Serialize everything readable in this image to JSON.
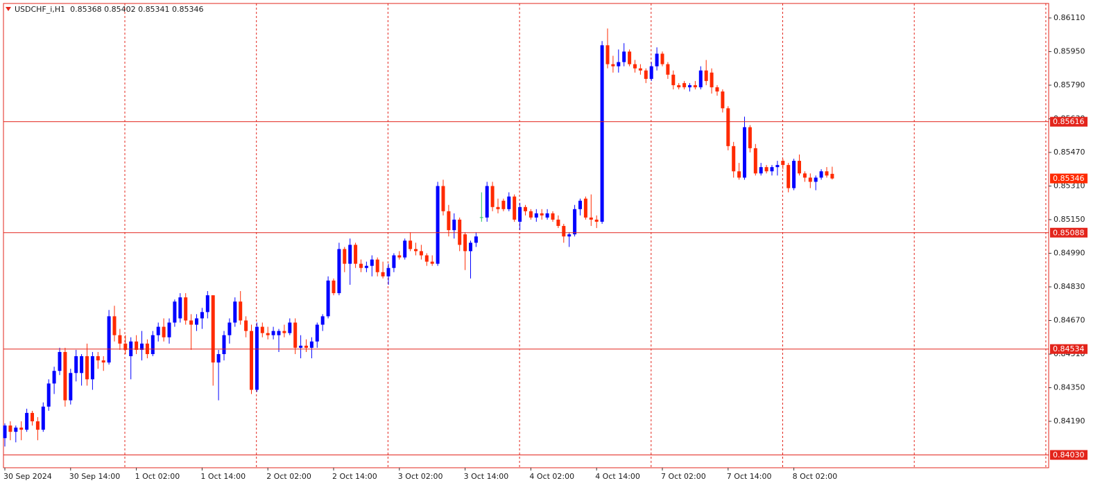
{
  "chart_data": {
    "type": "candlestick",
    "title": "USDCHF_i,H1  0.85368 0.85402 0.85341 0.85346",
    "bull_color": "#0000ff",
    "bear_color": "#ff2a00",
    "doji_color": "#22c55e",
    "grid_color": "#e3241b",
    "grid": true,
    "ylim": [
      0.83969,
      0.86179
    ],
    "yticks": [
      {
        "value": 0.8611,
        "label": "0.86110"
      },
      {
        "value": 0.8595,
        "label": "0.85950"
      },
      {
        "value": 0.8579,
        "label": "0.85790"
      },
      {
        "value": 0.8563,
        "label": "0.85630"
      },
      {
        "value": 0.8547,
        "label": "0.85470"
      },
      {
        "value": 0.8531,
        "label": "0.85310"
      },
      {
        "value": 0.8515,
        "label": "0.85150"
      },
      {
        "value": 0.8499,
        "label": "0.84990"
      },
      {
        "value": 0.8483,
        "label": "0.84830"
      },
      {
        "value": 0.8467,
        "label": "0.84670"
      },
      {
        "value": 0.8451,
        "label": "0.84510"
      },
      {
        "value": 0.8435,
        "label": "0.84350"
      },
      {
        "value": 0.8419,
        "label": "0.84190"
      }
    ],
    "levels": [
      {
        "value": 0.85616,
        "label": "0.85616"
      },
      {
        "value": 0.85088,
        "label": "0.85088"
      },
      {
        "value": 0.84534,
        "label": "0.84534"
      },
      {
        "value": 0.8403,
        "label": "0.84030"
      }
    ],
    "last_price": {
      "value": 0.85346,
      "label": "0.85346"
    },
    "categories": [
      "30 Sep 2024",
      null,
      null,
      null,
      null,
      null,
      null,
      null,
      null,
      null,
      null,
      null,
      "30 Sep 14:00",
      null,
      null,
      null,
      null,
      null,
      null,
      null,
      null,
      null,
      null,
      null,
      "1 Oct 02:00",
      null,
      null,
      null,
      null,
      null,
      null,
      null,
      null,
      null,
      null,
      null,
      "1 Oct 14:00",
      null,
      null,
      null,
      null,
      null,
      null,
      null,
      null,
      null,
      null,
      null,
      "2 Oct 02:00",
      null,
      null,
      null,
      null,
      null,
      null,
      null,
      null,
      null,
      null,
      null,
      "2 Oct 14:00",
      null,
      null,
      null,
      null,
      null,
      null,
      null,
      null,
      null,
      null,
      null,
      "3 Oct 02:00",
      null,
      null,
      null,
      null,
      null,
      null,
      null,
      null,
      null,
      null,
      null,
      "3 Oct 14:00",
      null,
      null,
      null,
      null,
      null,
      null,
      null,
      null,
      null,
      null,
      null,
      "4 Oct 02:00",
      null,
      null,
      null,
      null,
      null,
      null,
      null,
      null,
      null,
      null,
      null,
      "4 Oct 14:00",
      null,
      null,
      null,
      null,
      null,
      null,
      null,
      null,
      null,
      null,
      null,
      "7 Oct 02:00",
      null,
      null,
      null,
      null,
      null,
      null,
      null,
      null,
      null,
      null,
      null,
      "7 Oct 14:00",
      null,
      null,
      null,
      null,
      null,
      null,
      null,
      null,
      null,
      null,
      null,
      "8 Oct 02:00",
      null,
      null,
      null,
      null,
      null,
      null,
      null
    ],
    "ohlc": [
      [
        0.8411,
        0.8418,
        0.8407,
        0.8417
      ],
      [
        0.8417,
        0.8419,
        0.841,
        0.8414
      ],
      [
        0.8414,
        0.8417,
        0.8409,
        0.8416
      ],
      [
        0.8416,
        0.8419,
        0.841,
        0.8415
      ],
      [
        0.8415,
        0.8425,
        0.8414,
        0.8423
      ],
      [
        0.8423,
        0.8424,
        0.8417,
        0.8419
      ],
      [
        0.8419,
        0.8421,
        0.841,
        0.8415
      ],
      [
        0.8415,
        0.8428,
        0.8414,
        0.8426
      ],
      [
        0.8426,
        0.8439,
        0.8424,
        0.8437
      ],
      [
        0.8437,
        0.8445,
        0.8432,
        0.8443
      ],
      [
        0.8443,
        0.8454,
        0.8441,
        0.8452
      ],
      [
        0.8452,
        0.8454,
        0.8426,
        0.8429
      ],
      [
        0.8429,
        0.8444,
        0.8427,
        0.8442
      ],
      [
        0.8442,
        0.8453,
        0.8438,
        0.845
      ],
      [
        0.8442,
        0.8451,
        0.8436,
        0.845
      ],
      [
        0.845,
        0.8456,
        0.8436,
        0.8439
      ],
      [
        0.8439,
        0.8452,
        0.8434,
        0.845
      ],
      [
        0.845,
        0.8452,
        0.8444,
        0.8448
      ],
      [
        0.8448,
        0.845,
        0.8443,
        0.8447
      ],
      [
        0.8447,
        0.8472,
        0.8446,
        0.8469
      ],
      [
        0.8469,
        0.8474,
        0.8457,
        0.846
      ],
      [
        0.846,
        0.8463,
        0.8453,
        0.8456
      ],
      [
        0.8456,
        0.846,
        0.8451,
        0.8453
      ],
      [
        0.845,
        0.8459,
        0.8439,
        0.8457
      ],
      [
        0.8457,
        0.846,
        0.8451,
        0.8453
      ],
      [
        0.8453,
        0.8462,
        0.8448,
        0.8456
      ],
      [
        0.8456,
        0.8458,
        0.8449,
        0.8451
      ],
      [
        0.8451,
        0.8462,
        0.845,
        0.846
      ],
      [
        0.846,
        0.8466,
        0.8457,
        0.8464
      ],
      [
        0.8464,
        0.8468,
        0.8457,
        0.8459
      ],
      [
        0.8459,
        0.8468,
        0.8456,
        0.8466
      ],
      [
        0.8466,
        0.8477,
        0.8464,
        0.8476
      ],
      [
        0.8468,
        0.848,
        0.8466,
        0.8478
      ],
      [
        0.8478,
        0.848,
        0.8465,
        0.8467
      ],
      [
        0.8467,
        0.847,
        0.8453,
        0.8465
      ],
      [
        0.8465,
        0.847,
        0.8462,
        0.8468
      ],
      [
        0.8468,
        0.8473,
        0.8463,
        0.8471
      ],
      [
        0.8471,
        0.8481,
        0.8468,
        0.8479
      ],
      [
        0.8479,
        0.8479,
        0.8436,
        0.8447
      ],
      [
        0.8447,
        0.8453,
        0.8429,
        0.8451
      ],
      [
        0.8451,
        0.8462,
        0.8448,
        0.846
      ],
      [
        0.846,
        0.8468,
        0.8456,
        0.8466
      ],
      [
        0.8466,
        0.8478,
        0.8464,
        0.8476
      ],
      [
        0.8476,
        0.8481,
        0.8465,
        0.8467
      ],
      [
        0.8467,
        0.8469,
        0.8459,
        0.8462
      ],
      [
        0.8462,
        0.8465,
        0.8432,
        0.8434
      ],
      [
        0.8434,
        0.8466,
        0.8433,
        0.8464
      ],
      [
        0.8464,
        0.8466,
        0.8459,
        0.8461
      ],
      [
        0.8461,
        0.8464,
        0.8458,
        0.846
      ],
      [
        0.846,
        0.8464,
        0.8458,
        0.8462
      ],
      [
        0.846,
        0.8463,
        0.8452,
        0.8462
      ],
      [
        0.8462,
        0.8465,
        0.8459,
        0.8461
      ],
      [
        0.8461,
        0.8468,
        0.846,
        0.8466
      ],
      [
        0.8466,
        0.8468,
        0.8451,
        0.8454
      ],
      [
        0.8454,
        0.846,
        0.8449,
        0.8455
      ],
      [
        0.8455,
        0.8458,
        0.8452,
        0.8454
      ],
      [
        0.8454,
        0.8459,
        0.8449,
        0.8457
      ],
      [
        0.8457,
        0.8466,
        0.8454,
        0.8465
      ],
      [
        0.8465,
        0.847,
        0.8462,
        0.8469
      ],
      [
        0.8469,
        0.8488,
        0.8468,
        0.8486
      ],
      [
        0.8486,
        0.8487,
        0.8479,
        0.848
      ],
      [
        0.848,
        0.8504,
        0.8479,
        0.8501
      ],
      [
        0.8501,
        0.8502,
        0.849,
        0.8494
      ],
      [
        0.8494,
        0.8506,
        0.8484,
        0.8503
      ],
      [
        0.8503,
        0.8504,
        0.8492,
        0.8494
      ],
      [
        0.8494,
        0.8496,
        0.849,
        0.8492
      ],
      [
        0.8492,
        0.8495,
        0.849,
        0.8493
      ],
      [
        0.8493,
        0.8498,
        0.8488,
        0.8496
      ],
      [
        0.8496,
        0.8497,
        0.8488,
        0.849
      ],
      [
        0.849,
        0.8495,
        0.8487,
        0.8488
      ],
      [
        0.8488,
        0.8494,
        0.8484,
        0.8492
      ],
      [
        0.8492,
        0.8499,
        0.849,
        0.8498
      ],
      [
        0.8498,
        0.85,
        0.8496,
        0.8497
      ],
      [
        0.8497,
        0.8506,
        0.8496,
        0.8505
      ],
      [
        0.8505,
        0.8509,
        0.85,
        0.8501
      ],
      [
        0.8501,
        0.8504,
        0.8498,
        0.85
      ],
      [
        0.85,
        0.8503,
        0.8496,
        0.8498
      ],
      [
        0.8498,
        0.8499,
        0.8493,
        0.8495
      ],
      [
        0.8495,
        0.8498,
        0.8493,
        0.8494
      ],
      [
        0.8494,
        0.8533,
        0.8493,
        0.8531
      ],
      [
        0.8531,
        0.8534,
        0.8517,
        0.8519
      ],
      [
        0.8519,
        0.8522,
        0.8507,
        0.851
      ],
      [
        0.851,
        0.8518,
        0.8506,
        0.8515
      ],
      [
        0.8515,
        0.8516,
        0.85,
        0.8503
      ],
      [
        0.8508,
        0.8509,
        0.8491,
        0.85
      ],
      [
        0.85,
        0.8505,
        0.8487,
        0.8504
      ],
      [
        0.8504,
        0.8509,
        0.8502,
        0.8507
      ],
      [
        0.8516,
        0.8528,
        0.8514,
        0.8516
      ],
      [
        0.8516,
        0.8533,
        0.8514,
        0.8531
      ],
      [
        0.8531,
        0.8533,
        0.8519,
        0.8521
      ],
      [
        0.8521,
        0.8525,
        0.8518,
        0.852
      ],
      [
        0.8524,
        0.8525,
        0.8519,
        0.852
      ],
      [
        0.852,
        0.8528,
        0.8519,
        0.8526
      ],
      [
        0.8526,
        0.8527,
        0.8514,
        0.8515
      ],
      [
        0.8514,
        0.8523,
        0.851,
        0.8521
      ],
      [
        0.8521,
        0.8522,
        0.8517,
        0.8519
      ],
      [
        0.8519,
        0.852,
        0.8515,
        0.8516
      ],
      [
        0.8516,
        0.852,
        0.8514,
        0.8518
      ],
      [
        0.8518,
        0.852,
        0.8515,
        0.8517
      ],
      [
        0.8516,
        0.852,
        0.8515,
        0.8518
      ],
      [
        0.8518,
        0.8519,
        0.8514,
        0.8515
      ],
      [
        0.8515,
        0.8517,
        0.8511,
        0.8512
      ],
      [
        0.8512,
        0.8513,
        0.8504,
        0.8507
      ],
      [
        0.8507,
        0.8509,
        0.8502,
        0.8508
      ],
      [
        0.8508,
        0.8522,
        0.8507,
        0.852
      ],
      [
        0.852,
        0.8525,
        0.8517,
        0.8524
      ],
      [
        0.8525,
        0.8526,
        0.8515,
        0.8516
      ],
      [
        0.8516,
        0.8527,
        0.8512,
        0.8515
      ],
      [
        0.8515,
        0.8517,
        0.8511,
        0.8514
      ],
      [
        0.8514,
        0.86,
        0.8513,
        0.8598
      ],
      [
        0.8598,
        0.8606,
        0.8587,
        0.8589
      ],
      [
        0.8589,
        0.8593,
        0.8585,
        0.8588
      ],
      [
        0.8588,
        0.8596,
        0.8585,
        0.859
      ],
      [
        0.859,
        0.8599,
        0.8588,
        0.8595
      ],
      [
        0.8595,
        0.8596,
        0.8588,
        0.8589
      ],
      [
        0.8589,
        0.8591,
        0.8585,
        0.8587
      ],
      [
        0.8587,
        0.8589,
        0.8584,
        0.8586
      ],
      [
        0.8586,
        0.8587,
        0.858,
        0.8582
      ],
      [
        0.8582,
        0.859,
        0.8581,
        0.8588
      ],
      [
        0.8588,
        0.8597,
        0.8586,
        0.8594
      ],
      [
        0.8594,
        0.8595,
        0.8588,
        0.8589
      ],
      [
        0.8589,
        0.859,
        0.8582,
        0.8584
      ],
      [
        0.8584,
        0.8586,
        0.8577,
        0.8579
      ],
      [
        0.8579,
        0.858,
        0.8577,
        0.8578
      ],
      [
        0.858,
        0.8581,
        0.8577,
        0.8578
      ],
      [
        0.8578,
        0.858,
        0.8576,
        0.8579
      ],
      [
        0.8579,
        0.8581,
        0.8577,
        0.8578
      ],
      [
        0.8578,
        0.8588,
        0.8577,
        0.8586
      ],
      [
        0.8586,
        0.8591,
        0.8579,
        0.8581
      ],
      [
        0.8585,
        0.8587,
        0.8575,
        0.8578
      ],
      [
        0.8578,
        0.8579,
        0.8574,
        0.8576
      ],
      [
        0.8576,
        0.8577,
        0.8566,
        0.8568
      ],
      [
        0.8568,
        0.8569,
        0.8548,
        0.855
      ],
      [
        0.855,
        0.8552,
        0.8535,
        0.8538
      ],
      [
        0.8538,
        0.8542,
        0.8534,
        0.8535
      ],
      [
        0.8535,
        0.8564,
        0.8534,
        0.8559
      ],
      [
        0.8559,
        0.856,
        0.8547,
        0.8549
      ],
      [
        0.8549,
        0.8551,
        0.8536,
        0.8537
      ],
      [
        0.8537,
        0.8542,
        0.8536,
        0.854
      ],
      [
        0.854,
        0.8541,
        0.8537,
        0.8538
      ],
      [
        0.8538,
        0.8541,
        0.8536,
        0.854
      ],
      [
        0.854,
        0.8543,
        0.8536,
        0.8541
      ],
      [
        0.8543,
        0.8544,
        0.8539,
        0.8541
      ],
      [
        0.8541,
        0.8542,
        0.8528,
        0.853
      ],
      [
        0.853,
        0.8544,
        0.8529,
        0.8543
      ],
      [
        0.8543,
        0.8546,
        0.8536,
        0.8537
      ],
      [
        0.8537,
        0.8538,
        0.8533,
        0.8535
      ],
      [
        0.8535,
        0.8537,
        0.853,
        0.8533
      ],
      [
        0.8533,
        0.8536,
        0.8529,
        0.8535
      ],
      [
        0.8535,
        0.8539,
        0.8534,
        0.8538
      ],
      [
        0.8538,
        0.854,
        0.8535,
        0.8536
      ],
      [
        0.85368,
        0.85402,
        0.85341,
        0.85346
      ]
    ]
  }
}
